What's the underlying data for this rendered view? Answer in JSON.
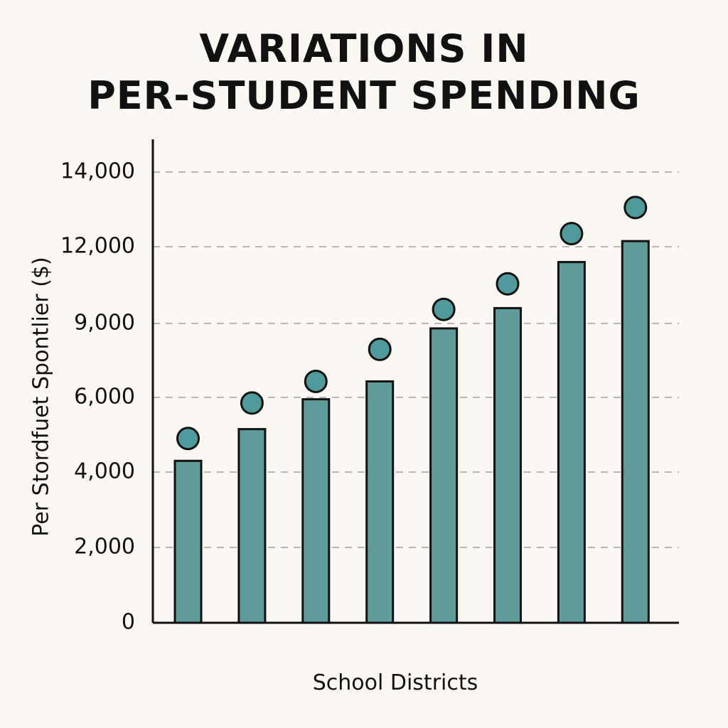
{
  "chart_data": {
    "type": "bar",
    "title_lines": [
      "VARIATIONS IN",
      "PER-STUDENT SPENDING"
    ],
    "xlabel": "School Districts",
    "ylabel": "Per Stordfuet Spontlier ($)",
    "y_ticks": [
      {
        "value": 0,
        "label": "0"
      },
      {
        "value": 2000,
        "label": "2,000"
      },
      {
        "value": 4000,
        "label": "4,000"
      },
      {
        "value": 6000,
        "label": "6,000"
      },
      {
        "value": 9000,
        "label": "9,000"
      },
      {
        "value": 12000,
        "label": "12,000"
      },
      {
        "value": 14000,
        "label": "14,000"
      }
    ],
    "bar_values": [
      4300,
      5150,
      5950,
      6650,
      8800,
      9600,
      11400,
      12150
    ],
    "marker_values": [
      4900,
      5850,
      6650,
      7950,
      9550,
      10550,
      12350,
      13050
    ],
    "grid": true,
    "legend": "none",
    "colors": {
      "bar_fill": "#5f9b98",
      "marker_fill": "#4f9a9a",
      "outline": "#111111",
      "grid": "#b8b8b0",
      "background": "#fbf8f3"
    }
  }
}
